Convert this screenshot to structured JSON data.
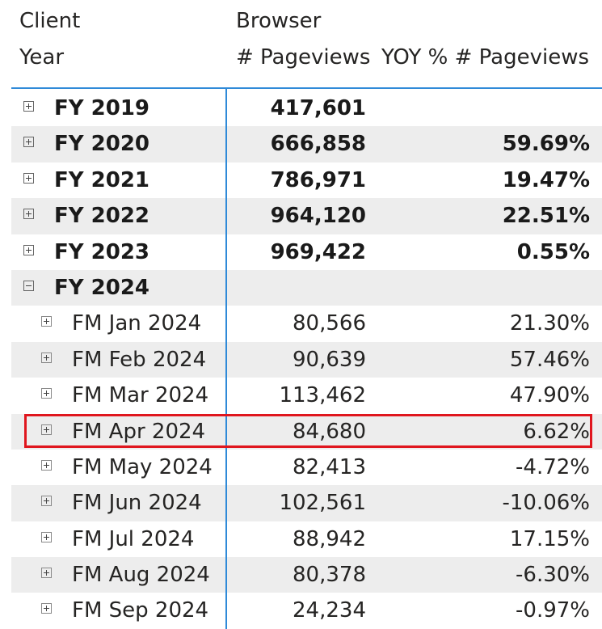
{
  "headers": {
    "row_dimension_1": "Client",
    "row_dimension_2": "Year",
    "column_group": "Browser",
    "measure_1": "# Pageviews",
    "measure_2": "YOY % # Pageviews"
  },
  "rows": [
    {
      "level": "year",
      "expanded": false,
      "label": "FY 2019",
      "pageviews": "417,601",
      "yoy": ""
    },
    {
      "level": "year",
      "expanded": false,
      "label": "FY 2020",
      "pageviews": "666,858",
      "yoy": "59.69%"
    },
    {
      "level": "year",
      "expanded": false,
      "label": "FY 2021",
      "pageviews": "786,971",
      "yoy": "19.47%"
    },
    {
      "level": "year",
      "expanded": false,
      "label": "FY 2022",
      "pageviews": "964,120",
      "yoy": "22.51%"
    },
    {
      "level": "year",
      "expanded": false,
      "label": "FY 2023",
      "pageviews": "969,422",
      "yoy": "0.55%"
    },
    {
      "level": "year",
      "expanded": true,
      "label": "FY 2024",
      "pageviews": "",
      "yoy": ""
    },
    {
      "level": "month",
      "expanded": false,
      "label": "FM Jan 2024",
      "pageviews": "80,566",
      "yoy": "21.30%"
    },
    {
      "level": "month",
      "expanded": false,
      "label": "FM Feb 2024",
      "pageviews": "90,639",
      "yoy": "57.46%"
    },
    {
      "level": "month",
      "expanded": false,
      "label": "FM Mar 2024",
      "pageviews": "113,462",
      "yoy": "47.90%"
    },
    {
      "level": "month",
      "expanded": false,
      "label": "FM Apr 2024",
      "pageviews": "84,680",
      "yoy": "6.62%",
      "highlighted": true
    },
    {
      "level": "month",
      "expanded": false,
      "label": "FM May 2024",
      "pageviews": "82,413",
      "yoy": "-4.72%"
    },
    {
      "level": "month",
      "expanded": false,
      "label": "FM Jun 2024",
      "pageviews": "102,561",
      "yoy": "-10.06%"
    },
    {
      "level": "month",
      "expanded": false,
      "label": "FM Jul 2024",
      "pageviews": "88,942",
      "yoy": "17.15%"
    },
    {
      "level": "month",
      "expanded": false,
      "label": "FM Aug 2024",
      "pageviews": "80,378",
      "yoy": "-6.30%"
    },
    {
      "level": "month",
      "expanded": false,
      "label": "FM Sep 2024",
      "pageviews": "24,234",
      "yoy": "-0.97%"
    }
  ],
  "colors": {
    "accent": "#2f8ad8",
    "row_shade": "#ededed",
    "highlight": "#e0161e"
  },
  "icons": {
    "collapsed": "expand-plus-icon",
    "expanded": "collapse-minus-icon"
  }
}
